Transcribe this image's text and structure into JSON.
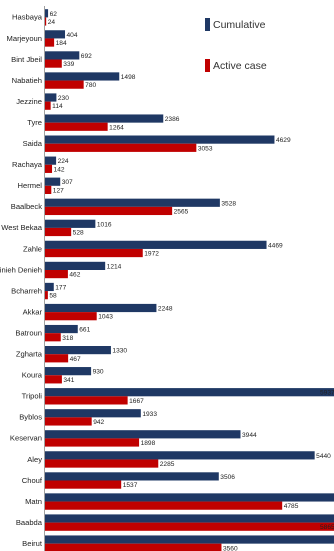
{
  "chart_data": {
    "type": "bar",
    "orientation": "horizontal",
    "title": "",
    "xlabel": "",
    "ylabel": "",
    "grid": false,
    "legend_position": "top-right",
    "categories": [
      "Hasbaya",
      "Marjeyoun",
      "Bint Jbeil",
      "Nabatieh",
      "Jezzine",
      "Tyre",
      "Saida",
      "Rachaya",
      "Hermel",
      "Baalbeck",
      "West Bekaa",
      "Zahle",
      "Minieh Denieh",
      "Bcharreh",
      "Akkar",
      "Batroun",
      "Zgharta",
      "Koura",
      "Tripoli",
      "Byblos",
      "Keservan",
      "Aley",
      "Chouf",
      "Matn",
      "Baabda",
      "Beirut"
    ],
    "series": [
      {
        "name": "Cumulative",
        "color": "#1f3864",
        "values": [
          62,
          404,
          692,
          1498,
          230,
          2386,
          4629,
          224,
          307,
          3528,
          1016,
          4469,
          1214,
          177,
          2248,
          661,
          1330,
          930,
          5937,
          1933,
          3944,
          5440,
          3506,
          null,
          null,
          null
        ]
      },
      {
        "name": "Active case",
        "color": "#c00000",
        "values": [
          24,
          184,
          339,
          780,
          114,
          1264,
          3053,
          142,
          127,
          2565,
          528,
          1972,
          462,
          58,
          1043,
          318,
          467,
          341,
          1667,
          942,
          1898,
          2285,
          1537,
          4785,
          5865,
          3560
        ]
      }
    ],
    "value_labels": {
      "Cumulative": [
        "62",
        "404",
        "692",
        "1498",
        "230",
        "2386",
        "4629",
        "224",
        "307",
        "3528",
        "1016",
        "4469",
        "1214",
        "177",
        "2248",
        "661",
        "1330",
        "930",
        "5937",
        "1933",
        "3944",
        "5440",
        "3506",
        "",
        "",
        ""
      ],
      "Active case": [
        "24",
        "184",
        "339",
        "780",
        "114",
        "1264",
        "3053",
        "142",
        "127",
        "2565",
        "528",
        "1972",
        "462",
        "58",
        "1043",
        "318",
        "467",
        "341",
        "1667",
        "942",
        "1898",
        "2285",
        "1537",
        "4785",
        "5865",
        "3560"
      ]
    },
    "xlim": [
      0,
      6000
    ]
  }
}
